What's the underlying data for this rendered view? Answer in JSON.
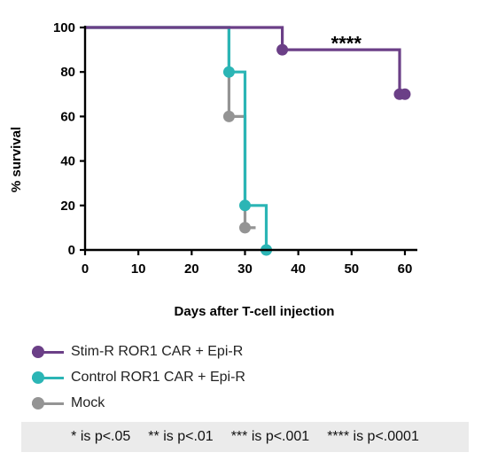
{
  "chart_data": {
    "type": "line",
    "subtype": "kaplan-meier",
    "title": "",
    "xlabel": "Days after T-cell injection",
    "ylabel": "% survival",
    "xlim": [
      0,
      62
    ],
    "ylim": [
      0,
      100
    ],
    "x_ticks": [
      0,
      10,
      20,
      30,
      40,
      50,
      60
    ],
    "y_ticks": [
      0,
      20,
      40,
      60,
      80,
      100
    ],
    "grid": false,
    "legend_position": "bottom-left",
    "annotations": [
      {
        "text": "****",
        "x": 49,
        "y": 97
      }
    ],
    "series": [
      {
        "name": "Stim-R ROR1 CAR + Epi-R",
        "color": "#6b3f87",
        "steps": [
          [
            0,
            100
          ],
          [
            37,
            100
          ],
          [
            37,
            90
          ],
          [
            59,
            90
          ],
          [
            59,
            70
          ],
          [
            60,
            70
          ]
        ],
        "markers": [
          [
            37,
            90
          ],
          [
            59,
            70
          ],
          [
            60,
            70
          ]
        ]
      },
      {
        "name": "Control ROR1 CAR + Epi-R",
        "color": "#2bb5b5",
        "steps": [
          [
            0,
            100
          ],
          [
            27,
            100
          ],
          [
            27,
            80
          ],
          [
            30,
            80
          ],
          [
            30,
            20
          ],
          [
            34,
            20
          ],
          [
            34,
            0
          ]
        ],
        "markers": [
          [
            27,
            80
          ],
          [
            30,
            20
          ],
          [
            34,
            0
          ]
        ]
      },
      {
        "name": "Mock",
        "color": "#949494",
        "steps": [
          [
            0,
            100
          ],
          [
            27,
            100
          ],
          [
            27,
            60
          ],
          [
            30,
            60
          ],
          [
            30,
            10
          ],
          [
            32,
            10
          ]
        ],
        "markers": [
          [
            27,
            60
          ],
          [
            30,
            10
          ]
        ]
      }
    ]
  },
  "footnote": [
    "* is p<.05",
    "** is p<.01",
    "*** is p<.001",
    "**** is p<.0001"
  ]
}
